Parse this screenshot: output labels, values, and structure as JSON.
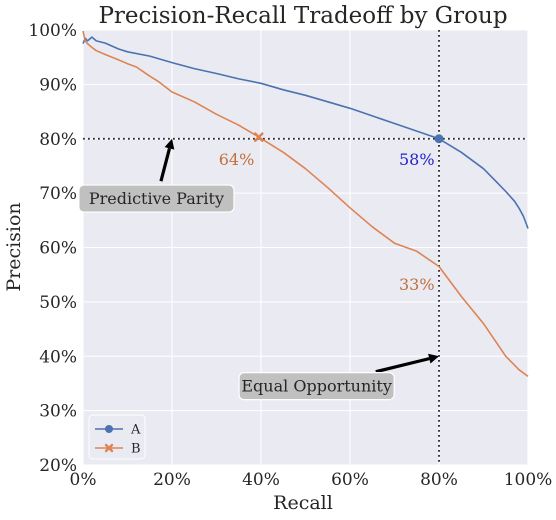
{
  "chart_data": {
    "type": "line",
    "title": "Precision-Recall Tradeoff by Group",
    "xlabel": "Recall",
    "ylabel": "Precision",
    "xlim": [
      0,
      100
    ],
    "ylim": [
      20,
      100
    ],
    "x_ticks": [
      "0%",
      "20%",
      "40%",
      "60%",
      "80%",
      "100%"
    ],
    "y_ticks": [
      "20%",
      "30%",
      "40%",
      "50%",
      "60%",
      "70%",
      "80%",
      "90%",
      "100%"
    ],
    "grid": true,
    "legend_position": "lower-left",
    "series": [
      {
        "name": "A",
        "color": "#4c72b0",
        "marker": "circle",
        "marker_point": [
          80,
          80
        ],
        "x": [
          0,
          0.5,
          1,
          2,
          3,
          5,
          8,
          10,
          15,
          20,
          25,
          30,
          35,
          40,
          45,
          50,
          55,
          60,
          65,
          70,
          75,
          80,
          85,
          90,
          93,
          95,
          97,
          98,
          99,
          99.5,
          100
        ],
        "y": [
          97.5,
          98.5,
          98,
          98.7,
          98,
          97.6,
          96.5,
          96,
          95.2,
          94,
          92.9,
          92,
          91,
          90.2,
          89,
          88,
          86.8,
          85.6,
          84.2,
          82.8,
          81.4,
          80,
          77.5,
          74.5,
          72,
          70.3,
          68.5,
          67.2,
          65.7,
          64.6,
          63.5
        ]
      },
      {
        "name": "B",
        "color": "#dd8452",
        "marker": "x",
        "marker_point": [
          39.5,
          80.3
        ],
        "x": [
          0,
          0.5,
          1,
          2,
          3,
          5,
          8,
          10,
          12,
          15,
          17,
          20,
          25,
          30,
          35,
          39.5,
          45,
          50,
          55,
          60,
          65,
          70,
          75,
          80,
          85,
          90,
          95,
          98,
          100
        ],
        "y": [
          99.8,
          98,
          97.5,
          96.8,
          96.2,
          95.5,
          94.5,
          93.8,
          93.2,
          91.5,
          90.5,
          88.6,
          86.8,
          84.5,
          82.5,
          80.3,
          77.5,
          74.5,
          71,
          67.3,
          63.8,
          60.8,
          59.3,
          56.5,
          51,
          46,
          40,
          37.5,
          36.3
        ]
      }
    ],
    "reference_lines": [
      {
        "orientation": "horizontal",
        "value": 80,
        "style": "dotted"
      },
      {
        "orientation": "vertical",
        "value": 80,
        "style": "dotted"
      }
    ],
    "annotations": [
      {
        "text": "Predictive Parity",
        "arrow_to": [
          20,
          80
        ],
        "box_center": [
          16.5,
          69
        ]
      },
      {
        "text": "Equal Opportunity",
        "arrow_to": [
          80,
          40
        ],
        "box_center": [
          52.5,
          34.5
        ]
      }
    ],
    "point_labels": [
      {
        "text": "64%",
        "at": [
          34.5,
          76.3
        ],
        "color": "#c26f3c"
      },
      {
        "text": "58%",
        "at": [
          75,
          76.3
        ],
        "color": "#2222cc"
      },
      {
        "text": "33%",
        "at": [
          75,
          53.3
        ],
        "color": "#c26f3c"
      }
    ]
  }
}
